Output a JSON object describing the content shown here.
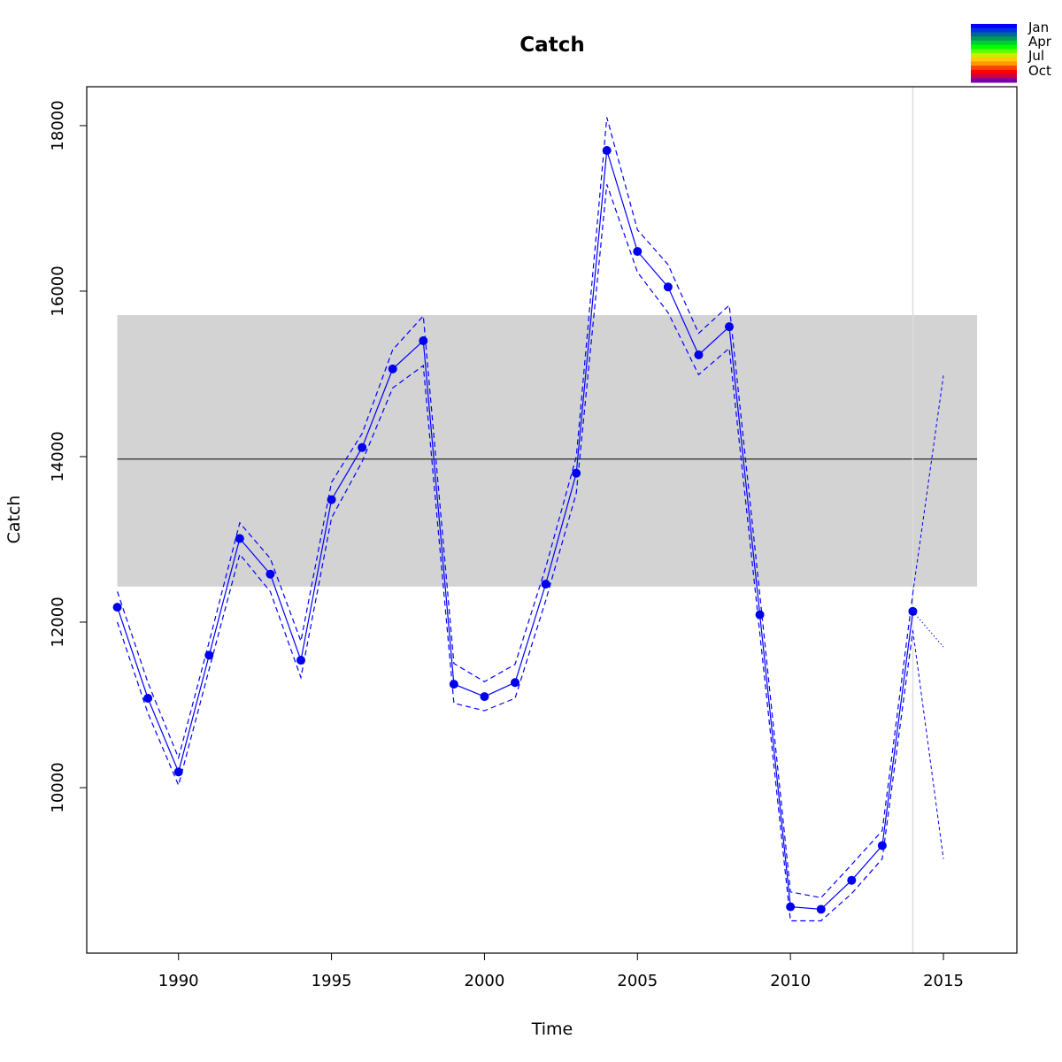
{
  "chart_data": {
    "type": "line",
    "title": "Catch",
    "xlabel": "Time",
    "ylabel": "Catch",
    "xlim": [
      1987,
      2017.4
    ],
    "ylim": [
      8000,
      18470
    ],
    "x_ticks": [
      1990,
      1995,
      2000,
      2005,
      2010,
      2015
    ],
    "y_ticks": [
      10000,
      12000,
      14000,
      16000,
      18000
    ],
    "grid": false,
    "colors": {
      "series": "#0000ff",
      "points": "#0000ee",
      "band": "#d3d3d3",
      "mean_line": "#000000",
      "vline": "#dddddd"
    },
    "band": {
      "lower": 12430,
      "upper": 15710,
      "x_from": 1988,
      "x_to": 2016.1
    },
    "mean": 13970,
    "vline_x": 2014,
    "series": [
      {
        "x": [
          1988,
          1989,
          1990,
          1991,
          1992,
          1993,
          1994,
          1995,
          1996,
          1997,
          1998,
          1999,
          2000,
          2001,
          2002,
          2003,
          2004,
          2005,
          2006,
          2007,
          2008,
          2009,
          2010,
          2011,
          2012,
          2013,
          2014
        ],
        "values": [
          12180,
          11080,
          10190,
          11600,
          13010,
          12580,
          11540,
          13480,
          14110,
          15060,
          15400,
          11250,
          11100,
          11270,
          12460,
          13800,
          17700,
          16480,
          16050,
          15230,
          15570,
          12090,
          8560,
          8530,
          8880,
          9300,
          12130
        ]
      },
      {
        "x": [
          1988,
          1989,
          1990,
          1991,
          1992,
          1993,
          1994,
          1995,
          1996,
          1997,
          1998,
          1999,
          2000,
          2001,
          2002,
          2003,
          2004,
          2005,
          2006,
          2007,
          2008,
          2009,
          2010,
          2011,
          2012,
          2013,
          2014
        ],
        "values": [
          12370,
          11270,
          10360,
          11760,
          13200,
          12770,
          11770,
          13690,
          14280,
          15290,
          15700,
          11500,
          11280,
          11490,
          12660,
          14000,
          18100,
          16740,
          16320,
          15490,
          15830,
          12330,
          8740,
          8670,
          9070,
          9480,
          12350
        ]
      },
      {
        "x": [
          1988,
          1989,
          1990,
          1991,
          1992,
          1993,
          1994,
          1995,
          1996,
          1997,
          1998,
          1999,
          2000,
          2001,
          2002,
          2003,
          2004,
          2005,
          2006,
          2007,
          2008,
          2009,
          2010,
          2011,
          2012,
          2013,
          2014
        ],
        "values": [
          12000,
          10900,
          10030,
          11430,
          12820,
          12370,
          11330,
          13260,
          13940,
          14830,
          15100,
          11020,
          10930,
          11080,
          12260,
          13560,
          17290,
          16230,
          15740,
          14990,
          15310,
          11860,
          8390,
          8390,
          8720,
          9140,
          11900
        ]
      }
    ],
    "forecast": {
      "x": [
        2014,
        2015
      ],
      "center": [
        12130,
        11700
      ],
      "upper": [
        12350,
        14980
      ],
      "lower": [
        11900,
        9140
      ]
    },
    "legend": {
      "placement": "top-right",
      "labels": [
        "Jan",
        "Apr",
        "Jul",
        "Oct"
      ],
      "swatches": [
        "#0000ff",
        "#0033dd",
        "#006699",
        "#009955",
        "#00cc33",
        "#00ff00",
        "#66ff00",
        "#ccee00",
        "#ffcc00",
        "#ff9900",
        "#ff4400",
        "#ff0000",
        "#cc0044",
        "#7700aa"
      ]
    }
  }
}
